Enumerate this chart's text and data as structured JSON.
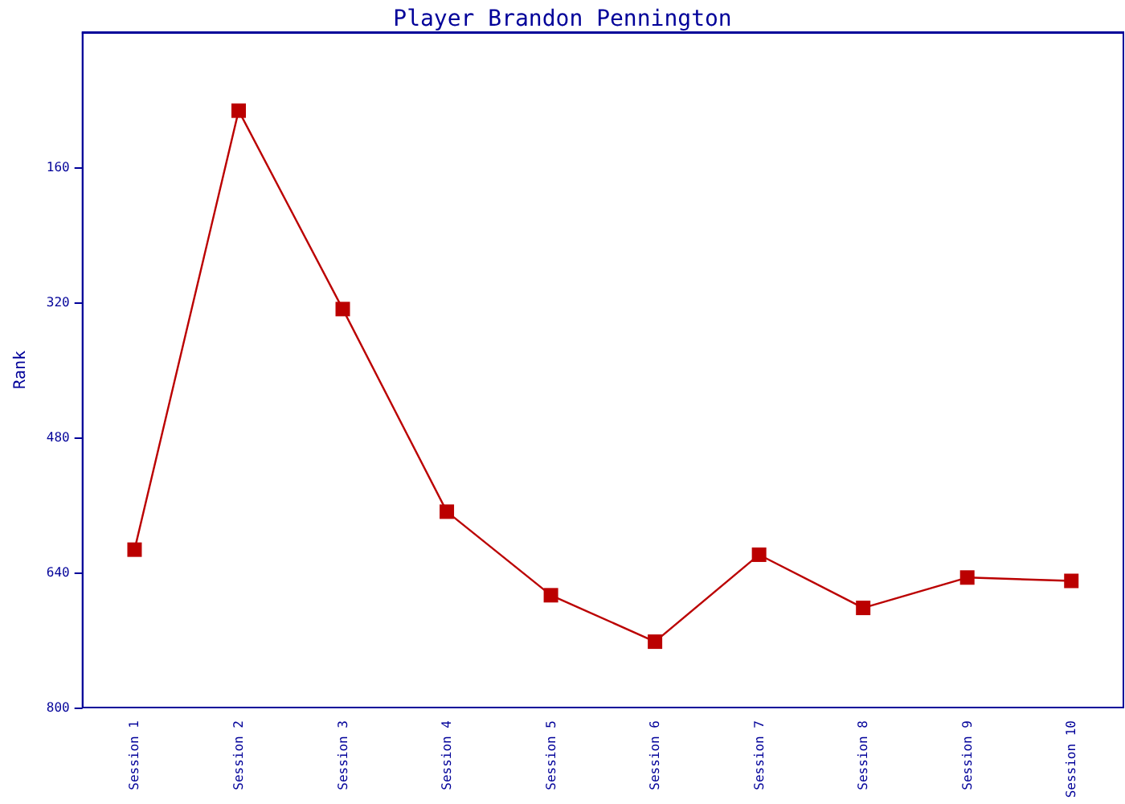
{
  "chart_data": {
    "type": "line",
    "title": "Player Brandon Pennington",
    "ylabel": "Rank",
    "categories": [
      "Session 1",
      "Session 2",
      "Session 3",
      "Session 4",
      "Session 5",
      "Session 6",
      "Session 7",
      "Session 8",
      "Session 9",
      "Session 10"
    ],
    "series": [
      {
        "color": "#bb0000",
        "values": [
          613,
          93,
          328,
          568,
          667,
          722,
          619,
          682,
          646,
          650
        ]
      }
    ],
    "ylim": [
      800,
      0
    ],
    "yticks": [
      160,
      320,
      480,
      640,
      800
    ],
    "marker": "square",
    "line_style": "solid"
  }
}
